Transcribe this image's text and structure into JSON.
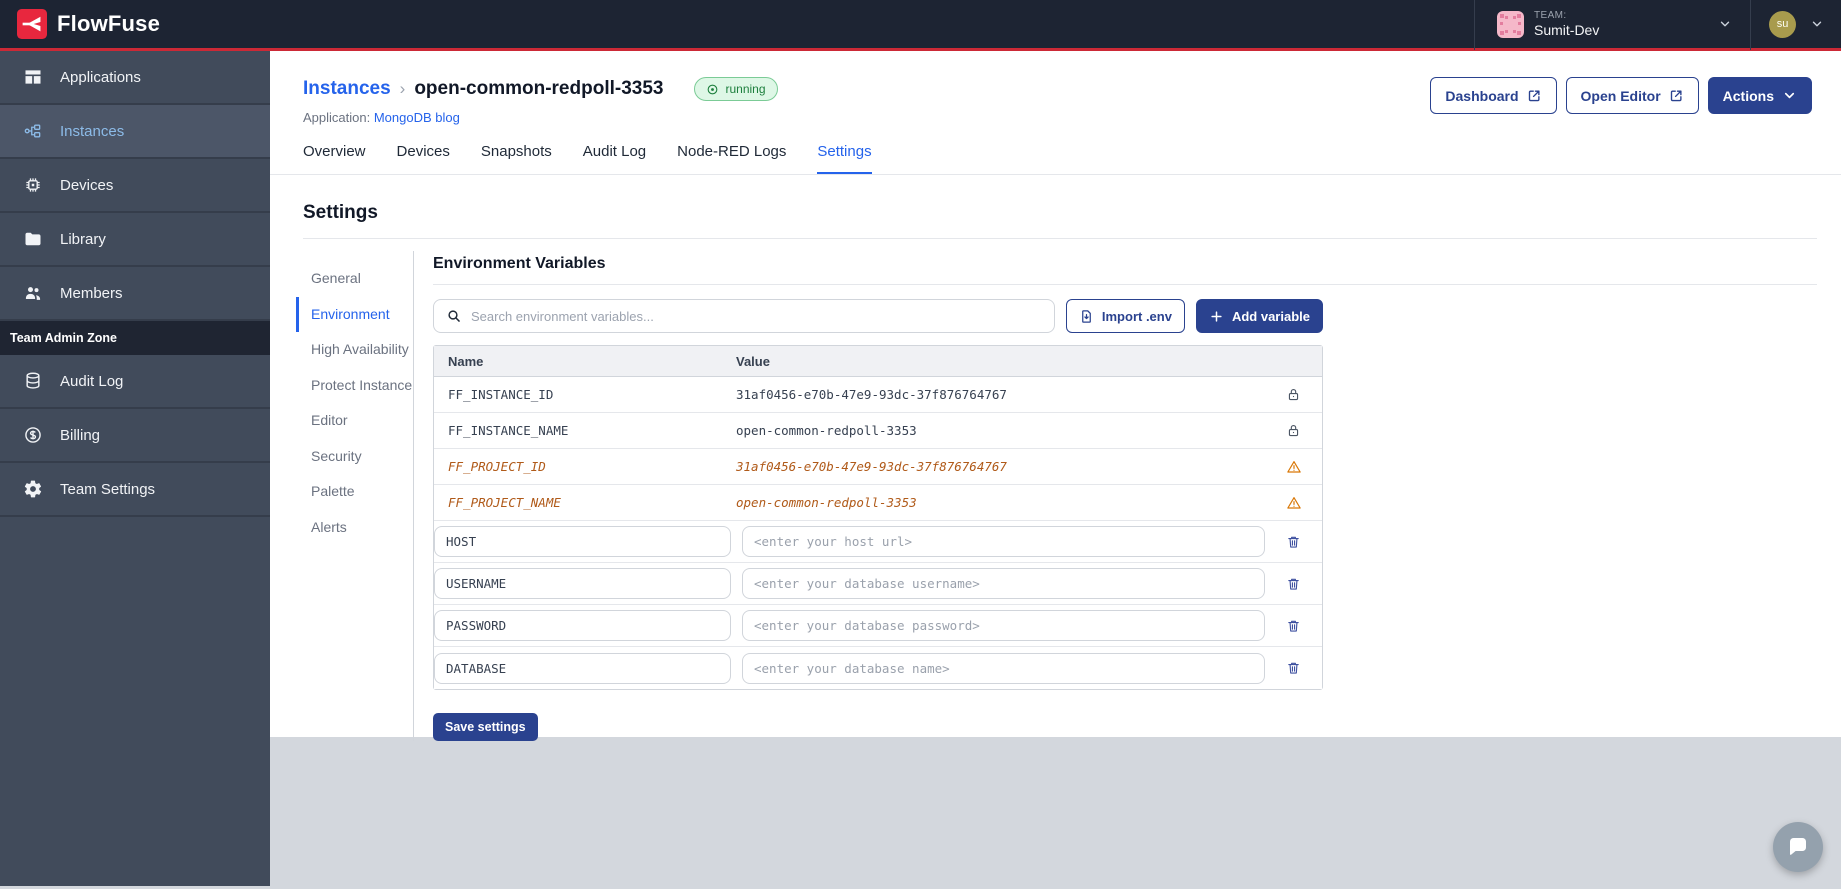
{
  "topbar": {
    "brand": "FlowFuse",
    "team_label": "TEAM:",
    "team_name": "Sumit-Dev",
    "user_initials": "su"
  },
  "sidebar": {
    "items": [
      {
        "label": "Applications",
        "icon": "applications-icon"
      },
      {
        "label": "Instances",
        "icon": "instances-icon",
        "active": true
      },
      {
        "label": "Devices",
        "icon": "devices-icon"
      },
      {
        "label": "Library",
        "icon": "library-icon"
      },
      {
        "label": "Members",
        "icon": "members-icon"
      }
    ],
    "admin_zone_label": "Team Admin Zone",
    "admin_items": [
      {
        "label": "Audit Log",
        "icon": "audit-log-icon"
      },
      {
        "label": "Billing",
        "icon": "billing-icon"
      },
      {
        "label": "Team Settings",
        "icon": "gear-icon"
      }
    ]
  },
  "header": {
    "breadcrumb_root": "Instances",
    "breadcrumb_separator": "›",
    "instance_name": "open-common-redpoll-3353",
    "status": "running",
    "application_label": "Application:",
    "application_name": "MongoDB blog",
    "buttons": {
      "dashboard": "Dashboard",
      "open_editor": "Open Editor",
      "actions": "Actions"
    }
  },
  "tabs": [
    "Overview",
    "Devices",
    "Snapshots",
    "Audit Log",
    "Node-RED Logs",
    "Settings"
  ],
  "settings": {
    "title": "Settings",
    "nav": [
      "General",
      "Environment",
      "High Availability",
      "Protect Instance",
      "Editor",
      "Security",
      "Palette",
      "Alerts"
    ],
    "active_nav": "Environment",
    "panel_title": "Environment Variables",
    "search_placeholder": "Search environment variables...",
    "import_label": "Import .env",
    "add_label": "Add variable",
    "save_label": "Save settings",
    "table": {
      "columns": [
        "Name",
        "Value"
      ],
      "rows": [
        {
          "type": "locked",
          "name": "FF_INSTANCE_ID",
          "value": "31af0456-e70b-47e9-93dc-37f876764767"
        },
        {
          "type": "locked",
          "name": "FF_INSTANCE_NAME",
          "value": "open-common-redpoll-3353"
        },
        {
          "type": "deprecated",
          "name": "FF_PROJECT_ID",
          "value": "31af0456-e70b-47e9-93dc-37f876764767"
        },
        {
          "type": "deprecated",
          "name": "FF_PROJECT_NAME",
          "value": "open-common-redpoll-3353"
        },
        {
          "type": "editable",
          "name": "HOST",
          "value_placeholder": "<enter your host url>"
        },
        {
          "type": "editable",
          "name": "USERNAME",
          "value_placeholder": "<enter your database username>"
        },
        {
          "type": "editable",
          "name": "PASSWORD",
          "value_placeholder": "<enter your database password>"
        },
        {
          "type": "editable",
          "name": "DATABASE",
          "value_placeholder": "<enter your database name>"
        }
      ]
    }
  },
  "icons": {
    "lock-icon": "padlock",
    "warning-icon": "triangle-exclamation",
    "trash-icon": "trash-can",
    "search-icon": "magnifier",
    "external-link-icon": "box-arrow",
    "chevron-down-icon": "v",
    "plus-icon": "+",
    "import-env-icon": "document-download",
    "running-icon": "circled-dot",
    "chat-icon": "speech-bubble"
  },
  "colors": {
    "accent_navy": "#2a428f",
    "link_blue": "#2563eb",
    "brand_red": "#e8273e",
    "status_green": "#1d7f3d",
    "deprecated_orange": "#b05a19",
    "sidebar_bg": "#414b5b",
    "topbar_bg": "#1d2433"
  }
}
